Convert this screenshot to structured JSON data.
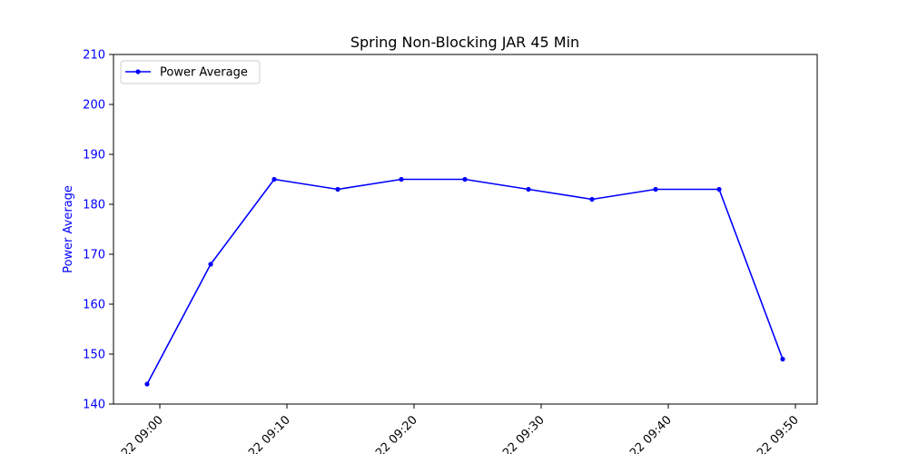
{
  "chart_data": {
    "type": "line",
    "title": "Spring Non-Blocking JAR 45 Min",
    "xlabel": "",
    "ylabel": "Power Average",
    "ylim": [
      140,
      210
    ],
    "yticks": [
      "140",
      "150",
      "160",
      "170",
      "180",
      "190",
      "200",
      "210"
    ],
    "xticks": [
      "22 09:00",
      "22 09:10",
      "22 09:20",
      "22 09:30",
      "22 09:40",
      "22 09:50"
    ],
    "grid": false,
    "legend_position": "top-left",
    "axis_color": "#0000ff",
    "series": [
      {
        "name": "Power Average",
        "color": "#0000ff",
        "marker": "point",
        "x": [
          "08:59",
          "09:04",
          "09:09",
          "09:14",
          "09:19",
          "09:24",
          "09:29",
          "09:34",
          "09:39",
          "09:44",
          "09:49"
        ],
        "values": [
          144,
          168,
          185,
          183,
          185,
          185,
          183,
          181,
          183,
          183,
          149
        ]
      }
    ]
  }
}
